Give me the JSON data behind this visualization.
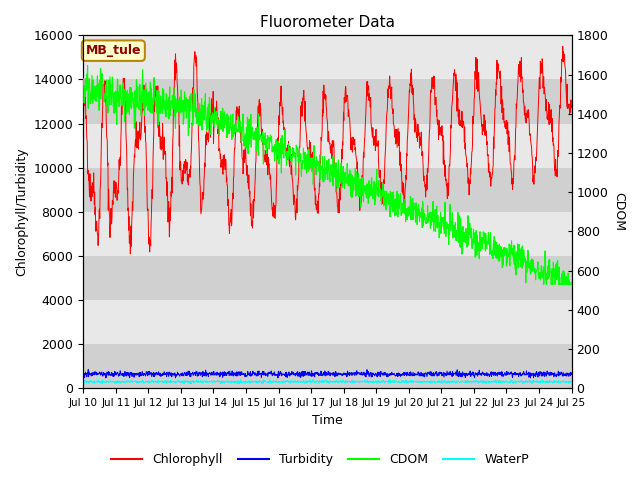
{
  "title": "Fluorometer Data",
  "xlabel": "Time",
  "ylabel_left": "Chlorophyll/Turbidity",
  "ylabel_right": "CDOM",
  "annotation": "MB_tule",
  "ylim_left": [
    0,
    16000
  ],
  "ylim_right": [
    0,
    1800
  ],
  "plot_bg_color": "#e8e8e8",
  "alt_band_color": "#d0d0d0",
  "legend_entries": [
    "Chlorophyll",
    "Turbidity",
    "CDOM",
    "WaterP"
  ],
  "legend_colors": [
    "red",
    "blue",
    "lime",
    "cyan"
  ],
  "x_tick_labels": [
    "Jul 10",
    "Jul 11",
    "Jul 12",
    "Jul 13",
    "Jul 14",
    "Jul 15",
    "Jul 16",
    "Jul 17",
    "Jul 18",
    "Jul 19",
    "Jul 20",
    "Jul 21",
    "Jul 22",
    "Jul 23",
    "Jul 24",
    "Jul 25"
  ],
  "n_points": 1440,
  "seed": 42
}
